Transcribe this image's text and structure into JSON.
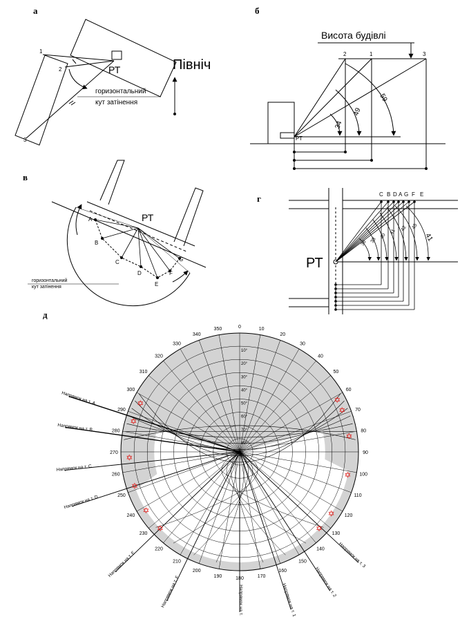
{
  "panels": {
    "a": {
      "label": "а",
      "pt": "РТ",
      "north": "Північ",
      "caption_line1": "горизонтальний",
      "caption_line2": "кут затінення",
      "points": [
        "1",
        "2",
        "3"
      ]
    },
    "b": {
      "label": "б",
      "title": "Висота будівлі",
      "pt": "РТ",
      "points": [
        "1",
        "2",
        "3"
      ],
      "angles": [
        "34",
        "49",
        "59"
      ]
    },
    "v": {
      "label": "в",
      "pt": "РТ",
      "caption_line1": "горизонтальний",
      "caption_line2": "кут затінення",
      "points": [
        "A",
        "B",
        "C",
        "D",
        "E",
        "F",
        "G"
      ]
    },
    "g": {
      "label": "г",
      "pt": "РТ",
      "points": [
        "C",
        "B",
        "D",
        "A",
        "G",
        "F",
        "E"
      ],
      "angles": [
        "36",
        "38",
        "40",
        "41",
        "42",
        "45",
        "41"
      ]
    },
    "d": {
      "label": "д",
      "azimuth_labels": [
        "0",
        "10",
        "20",
        "30",
        "40",
        "50",
        "60",
        "70",
        "80",
        "90",
        "100",
        "110",
        "120",
        "130",
        "140",
        "150",
        "160",
        "170",
        "180",
        "190",
        "200",
        "210",
        "220",
        "230",
        "240",
        "250",
        "260",
        "270",
        "280",
        "290",
        "300",
        "310",
        "320",
        "330",
        "340",
        "350"
      ],
      "altitude_labels": [
        "10°",
        "20°",
        "30°",
        "40°",
        "50°",
        "60°",
        "70°",
        "80°"
      ],
      "directions": [
        "Напрямок на т. А",
        "Напрямок на т. B",
        "Напрямок на т. C",
        "Напрямок на т. D",
        "Напрямок на т. E",
        "Напрямок на т. F",
        "Напрямок на т. G",
        "Напрямок на т. 1",
        "Напрямок на т. 2",
        "Напрямок на т. 3"
      ],
      "colors": {
        "shade": "#d3d3d3",
        "marker": "#e0201c",
        "ink": "#000000"
      }
    }
  }
}
